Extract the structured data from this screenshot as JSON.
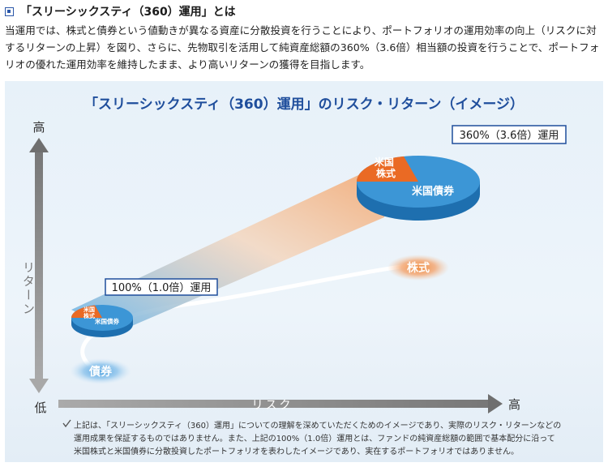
{
  "heading": {
    "icon": "square-bullet-icon",
    "title": "「スリーシックスティ（360）運用」とは"
  },
  "intro": {
    "text": "当運用では、株式と債券という値動きが異なる資産に分散投資を行うことにより、ポートフォリオの運用効率の向上（リスクに対するリターンの上昇）を図り、さらに、先物取引を活用して純資産総額の360%（3.6倍）相当額の投資を行うことで、ポートフォリオの優れた運用効率を維持したまま、より高いリターンの獲得を目指します。"
  },
  "diagram": {
    "title": "「スリーシックスティ（360）運用」のリスク・リターン（イメージ）",
    "y_axis": {
      "label": "リターン",
      "high": "高",
      "low": "低"
    },
    "x_axis": {
      "label": "リスク",
      "high": "高"
    },
    "portfolio_360": {
      "label": "360%（3.6倍）運用",
      "slice_stock": "米国株式",
      "slice_bond": "米国債券"
    },
    "portfolio_100": {
      "label": "100%（1.0倍）運用",
      "slice_stock": "米国株式",
      "slice_bond": "米国債券"
    },
    "stock_point": {
      "label": "株式"
    },
    "bond_point": {
      "label": "債券"
    },
    "note": {
      "icon": "check-icon",
      "lines": [
        "上記は、「スリーシックスティ（360）運用」についての理解を深めていただくためのイメージであり、実際のリスク・リターンなどの",
        "運用成果を保証するものではありません。また、上記の100%（1.0倍）運用とは、ファンドの純資産総額の範囲で基本配分に沿って",
        "米国株式と米国債券に分散投資したポートフォリオを表わしたイメージであり、実在するポートフォリオではありません。"
      ]
    },
    "colors": {
      "pie_blue": "#3c96d6",
      "pie_orange": "#ea6a24",
      "title_blue": "#1f4e9c",
      "axis_gray": "#8c8c8c"
    }
  }
}
